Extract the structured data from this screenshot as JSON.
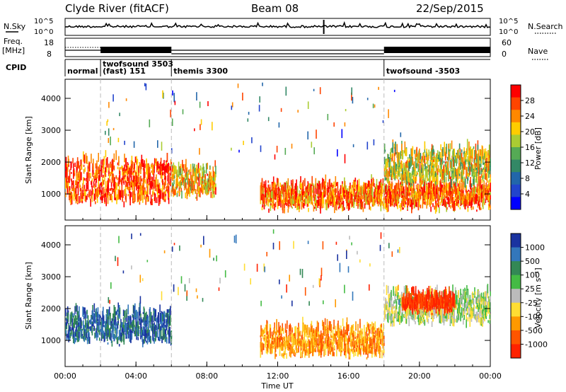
{
  "header": {
    "title": "Clyde River (fitACF)",
    "beam": "Beam 08",
    "date": "22/Sep/2015"
  },
  "top_panels": {
    "nsky_label": "N.Sky",
    "nsky_ticks": [
      "10^5",
      "10^0"
    ],
    "nsearch_label": "N.Search",
    "nsearch_ticks": [
      "10^5",
      "10^0"
    ],
    "freq_label": "Freq.",
    "freq_unit": "[MHz]",
    "freq_ticks": [
      "18",
      "8"
    ],
    "nave_label": "Nave",
    "nave_ticks": [
      "60",
      "0"
    ],
    "cpid_label": "CPID",
    "cpid_segments": [
      {
        "label": "normal",
        "start_hour": 0.0,
        "end_hour": 2.0
      },
      {
        "label": "twofsound 3503",
        "label2": "(fast) 151",
        "start_hour": 2.0,
        "end_hour": 6.0
      },
      {
        "label": "themis 3300",
        "start_hour": 6.0,
        "end_hour": 18.0
      },
      {
        "label": "twofsound -3503",
        "start_hour": 18.0,
        "end_hour": 24.0
      }
    ]
  },
  "chart_data": [
    {
      "type": "heatmap",
      "name": "power",
      "ylabel": "Slant Range [km]",
      "yticks": [
        "1000",
        "2000",
        "3000",
        "4000"
      ],
      "ylim": [
        180,
        4600
      ],
      "xlim": [
        0,
        24
      ],
      "colorbar": {
        "label": "Power [dB]",
        "ticks": [
          "28",
          "24",
          "20",
          "16",
          "12",
          "8",
          "4"
        ],
        "colors": [
          "#ff0000",
          "#ff4400",
          "#ff8800",
          "#ffcc00",
          "#aacc33",
          "#55aa55",
          "#338866",
          "#2266aa",
          "#2244cc",
          "#0000ff"
        ]
      },
      "dominant_bands": [
        {
          "start_hour": 0.0,
          "end_hour": 6.0,
          "range_km": [
            700,
            1900
          ],
          "power_db": 24
        },
        {
          "start_hour": 6.0,
          "end_hour": 8.5,
          "range_km": [
            900,
            1700
          ],
          "power_db": 18
        },
        {
          "start_hour": 11.0,
          "end_hour": 24.0,
          "range_km": [
            500,
            1200
          ],
          "power_db": 22
        },
        {
          "start_hour": 18.0,
          "end_hour": 24.0,
          "range_km": [
            1300,
            2300
          ],
          "power_db": 16
        }
      ]
    },
    {
      "type": "heatmap",
      "name": "velocity",
      "ylabel": "Slant Range [km]",
      "yticks": [
        "1000",
        "2000",
        "3000",
        "4000"
      ],
      "ylim": [
        180,
        4600
      ],
      "xlim": [
        0,
        24
      ],
      "xticks": [
        "00:00",
        "04:00",
        "08:00",
        "12:00",
        "16:00",
        "20:00",
        "00:00"
      ],
      "xlabel": "Time UT",
      "colorbar": {
        "label": "Velocity [m s⁻¹]",
        "ticks": [
          "1000",
          "500",
          "100",
          "25",
          "-25",
          "-100",
          "-500",
          "-1000"
        ],
        "colors": [
          "#1a33a0",
          "#3377bb",
          "#338855",
          "#44bb44",
          "#bbbbbb",
          "#ffdd33",
          "#ff9900",
          "#ff5500",
          "#ff2200"
        ]
      },
      "dominant_bands": [
        {
          "start_hour": 0.0,
          "end_hour": 6.0,
          "range_km": [
            900,
            1800
          ],
          "velocity_ms": 500
        },
        {
          "start_hour": 11.0,
          "end_hour": 18.0,
          "range_km": [
            500,
            1300
          ],
          "velocity_ms": -300
        },
        {
          "start_hour": 18.0,
          "end_hour": 24.0,
          "range_km": [
            1500,
            2400
          ],
          "velocity_ms": -25
        },
        {
          "start_hour": 19.0,
          "end_hour": 22.0,
          "range_km": [
            1900,
            2300
          ],
          "velocity_ms": -800
        }
      ]
    }
  ]
}
